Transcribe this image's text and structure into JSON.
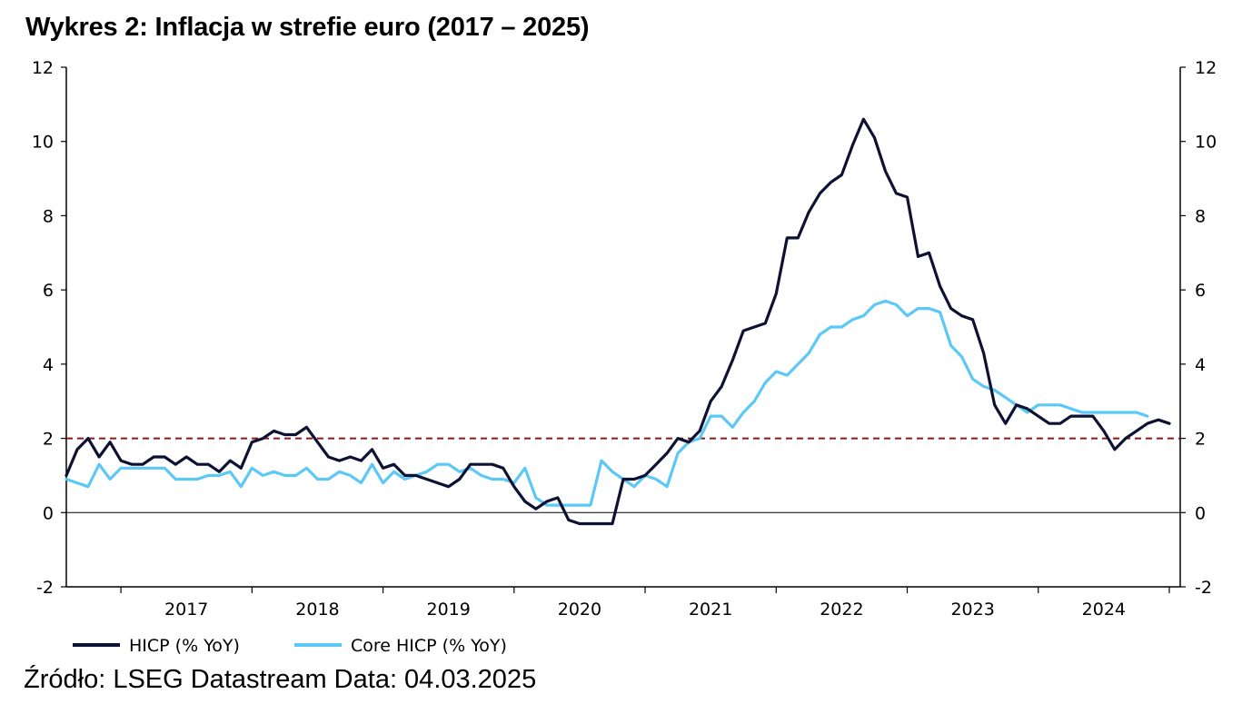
{
  "title": "Wykres 2: Inflacja w strefie euro (2017 – 2025)",
  "source": "Źródło: LSEG Datastream Data: 04.03.2025",
  "chart_data": {
    "type": "line",
    "title": "Wykres 2: Inflacja w strefie euro (2017 – 2025)",
    "xlabel": "",
    "ylabel": "",
    "ylim": [
      -2,
      12
    ],
    "yticks": [
      -2,
      0,
      2,
      4,
      6,
      8,
      10,
      12
    ],
    "ytick_labels": [
      "-2",
      "0",
      "2",
      "4",
      "6",
      "8",
      "10",
      "12"
    ],
    "y_axis_sides": "left and right",
    "x_start": "2016-08",
    "x_end": "2025-02",
    "year_labels": [
      "2017",
      "2018",
      "2019",
      "2020",
      "2021",
      "2022",
      "2023",
      "2024"
    ],
    "grid": false,
    "legend_position": "bottom-left",
    "reference_lines": [
      {
        "y": 2,
        "style": "dashed",
        "color": "#8b1a1a"
      },
      {
        "y": 0,
        "style": "solid",
        "color": "#000000"
      }
    ],
    "series": [
      {
        "name": "HICP (% YoY)",
        "color": "#0d1233",
        "start": "2016-08",
        "values": [
          1.0,
          1.7,
          2.0,
          1.5,
          1.9,
          1.4,
          1.3,
          1.3,
          1.5,
          1.5,
          1.3,
          1.5,
          1.3,
          1.3,
          1.1,
          1.4,
          1.2,
          1.9,
          2.0,
          2.2,
          2.1,
          2.1,
          2.3,
          1.9,
          1.5,
          1.4,
          1.5,
          1.4,
          1.7,
          1.2,
          1.3,
          1.0,
          1.0,
          0.9,
          0.8,
          0.7,
          0.9,
          1.3,
          1.3,
          1.3,
          1.2,
          0.7,
          0.3,
          0.1,
          0.3,
          0.4,
          -0.2,
          -0.3,
          -0.3,
          -0.3,
          -0.3,
          0.9,
          0.9,
          1.0,
          1.3,
          1.6,
          2.0,
          1.9,
          2.2,
          3.0,
          3.4,
          4.1,
          4.9,
          5.0,
          5.1,
          5.9,
          7.4,
          7.4,
          8.1,
          8.6,
          8.9,
          9.1,
          9.9,
          10.6,
          10.1,
          9.2,
          8.6,
          8.5,
          6.9,
          7.0,
          6.1,
          5.5,
          5.3,
          5.2,
          4.3,
          2.9,
          2.4,
          2.9,
          2.8,
          2.6,
          2.4,
          2.4,
          2.6,
          2.6,
          2.6,
          2.2,
          1.7,
          2.0,
          2.2,
          2.4,
          2.5,
          2.4
        ]
      },
      {
        "name": "Core HICP (% YoY)",
        "color": "#5bc8f5",
        "start": "2016-08",
        "values": [
          0.9,
          0.8,
          0.7,
          1.3,
          0.9,
          1.2,
          1.2,
          1.2,
          1.2,
          1.2,
          0.9,
          0.9,
          0.9,
          1.0,
          1.0,
          1.1,
          0.7,
          1.2,
          1.0,
          1.1,
          1.0,
          1.0,
          1.2,
          0.9,
          0.9,
          1.1,
          1.0,
          0.8,
          1.3,
          0.8,
          1.1,
          0.9,
          1.0,
          1.1,
          1.3,
          1.3,
          1.1,
          1.2,
          1.0,
          0.9,
          0.9,
          0.8,
          1.2,
          0.4,
          0.2,
          0.2,
          0.2,
          0.2,
          0.2,
          1.4,
          1.1,
          0.9,
          0.7,
          1.0,
          0.9,
          0.7,
          1.6,
          1.9,
          2.0,
          2.6,
          2.6,
          2.3,
          2.7,
          3.0,
          3.5,
          3.8,
          3.7,
          4.0,
          4.3,
          4.8,
          5.0,
          5.0,
          5.2,
          5.3,
          5.6,
          5.7,
          5.6,
          5.3,
          5.5,
          5.5,
          5.4,
          4.5,
          4.2,
          3.6,
          3.4,
          3.3,
          3.1,
          2.9,
          2.7,
          2.9,
          2.9,
          2.9,
          2.8,
          2.7,
          2.7,
          2.7,
          2.7,
          2.7,
          2.7,
          2.6
        ]
      }
    ]
  }
}
